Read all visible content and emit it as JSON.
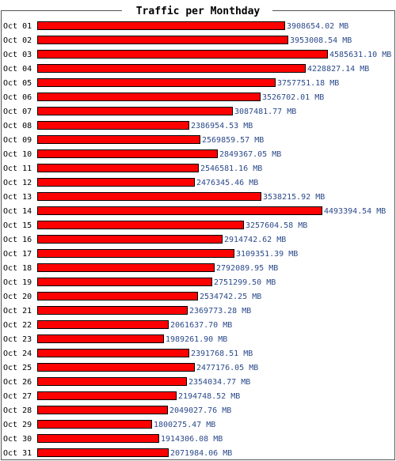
{
  "chart_data": {
    "type": "bar",
    "orientation": "horizontal",
    "title": "Traffic per Monthday",
    "unit": "MB",
    "categories": [
      "Oct 01",
      "Oct 02",
      "Oct 03",
      "Oct 04",
      "Oct 05",
      "Oct 06",
      "Oct 07",
      "Oct 08",
      "Oct 09",
      "Oct 10",
      "Oct 11",
      "Oct 12",
      "Oct 13",
      "Oct 14",
      "Oct 15",
      "Oct 16",
      "Oct 17",
      "Oct 18",
      "Oct 19",
      "Oct 20",
      "Oct 21",
      "Oct 22",
      "Oct 23",
      "Oct 24",
      "Oct 25",
      "Oct 26",
      "Oct 27",
      "Oct 28",
      "Oct 29",
      "Oct 30",
      "Oct 31"
    ],
    "values": [
      3908654.02,
      3953008.54,
      4585631.1,
      4228827.14,
      3757751.18,
      3526702.01,
      3087481.77,
      2386954.53,
      2569859.57,
      2849367.05,
      2546581.16,
      2476345.46,
      3538215.92,
      4493394.54,
      3257604.58,
      2914742.62,
      3109351.39,
      2792089.95,
      2751299.5,
      2534742.25,
      2369773.28,
      2061637.7,
      1989261.9,
      2391768.51,
      2477176.05,
      2354034.77,
      2194748.52,
      2049027.76,
      1800275.47,
      1914306.08,
      2071984.06
    ],
    "value_labels": [
      "3908654.02 MB",
      "3953008.54 MB",
      "4585631.10 MB",
      "4228827.14 MB",
      "3757751.18 MB",
      "3526702.01 MB",
      "3087481.77 MB",
      "2386954.53 MB",
      "2569859.57 MB",
      "2849367.05 MB",
      "2546581.16 MB",
      "2476345.46 MB",
      "3538215.92 MB",
      "4493394.54 MB",
      "3257604.58 MB",
      "2914742.62 MB",
      "3109351.39 MB",
      "2792089.95 MB",
      "2751299.50 MB",
      "2534742.25 MB",
      "2369773.28 MB",
      "2061637.70 MB",
      "1989261.90 MB",
      "2391768.51 MB",
      "2477176.05 MB",
      "2354034.77 MB",
      "2194748.52 MB",
      "2049027.76 MB",
      "1800275.47 MB",
      "1914306.08 MB",
      "2071984.06 MB"
    ],
    "colors": {
      "bar": "#ff0000",
      "bar_outline": "#000000",
      "value_text": "#2b4a8a",
      "frame": "#555555"
    }
  }
}
